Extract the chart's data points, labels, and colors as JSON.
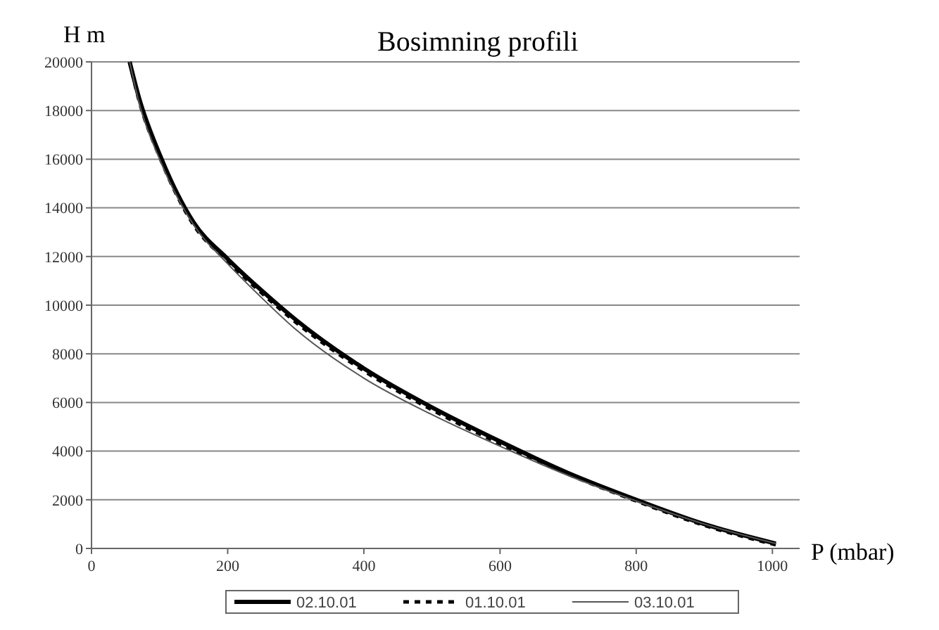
{
  "chart_data": {
    "type": "line",
    "title": "Bosimning profili",
    "xlabel": "P (mbar)",
    "ylabel": "H m",
    "xlim": [
      0,
      1040
    ],
    "ylim": [
      0,
      20000
    ],
    "xticks": [
      0,
      200,
      400,
      600,
      800,
      1000
    ],
    "yticks": [
      0,
      2000,
      4000,
      6000,
      8000,
      10000,
      12000,
      14000,
      16000,
      18000,
      20000
    ],
    "grid": "y",
    "legend": "bottom",
    "series": [
      {
        "name": "02.10.01",
        "color": "#000000",
        "line_style": "solid",
        "x": [
          56,
          70,
          100,
          150,
          200,
          250,
          300,
          400,
          500,
          600,
          700,
          800,
          900,
          1005
        ],
        "values": [
          20000,
          18500,
          16200,
          13400,
          11900,
          10600,
          9400,
          7400,
          5800,
          4400,
          3100,
          2000,
          1000,
          200
        ]
      },
      {
        "name": "01.10.01",
        "color": "#000000",
        "line_style": "dashed",
        "x": [
          56,
          70,
          100,
          150,
          200,
          250,
          300,
          400,
          500,
          600,
          700,
          800,
          900,
          1005
        ],
        "values": [
          20000,
          18400,
          16100,
          13300,
          11800,
          10500,
          9300,
          7300,
          5700,
          4300,
          3050,
          1950,
          950,
          150
        ]
      },
      {
        "name": "03.10.01",
        "color": "#555555",
        "line_style": "solid",
        "x": [
          56,
          70,
          100,
          150,
          200,
          250,
          300,
          400,
          500,
          600,
          700,
          800,
          900,
          1005
        ],
        "values": [
          20000,
          18300,
          16000,
          13300,
          11700,
          10300,
          9000,
          7000,
          5500,
          4200,
          3000,
          1950,
          1000,
          200
        ]
      }
    ]
  }
}
